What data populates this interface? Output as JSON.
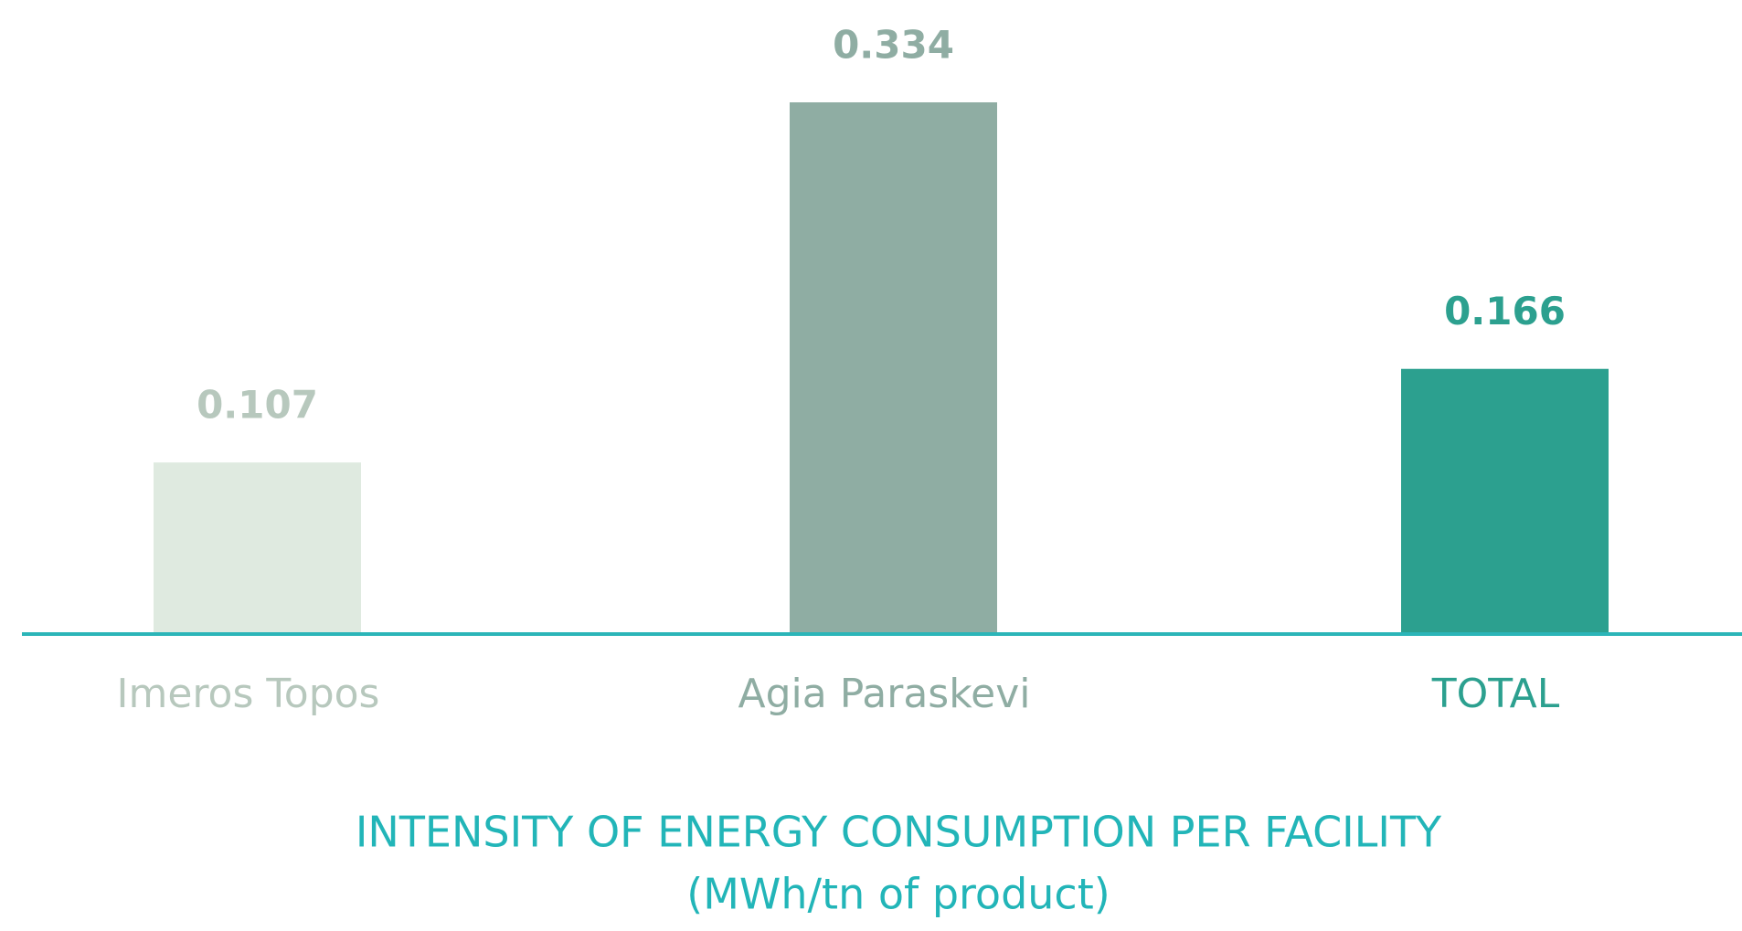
{
  "chart_data": {
    "type": "bar",
    "title": "INTENSITY OF ENERGY CONSUMPTION PER FACILITY",
    "subtitle": "(MWh/tn of product)",
    "categories": [
      "Imeros Topos",
      "Agia Paraskevi",
      "TOTAL"
    ],
    "values": [
      0.107,
      0.334,
      0.166
    ],
    "colors": [
      "#dfeae0",
      "#8fada3",
      "#2ca08f"
    ],
    "label_colors": [
      "#b7c8bd",
      "#8fada3",
      "#2ca08f"
    ],
    "axis_color": "#2bb5b8",
    "title_color": "#22b5b8"
  }
}
